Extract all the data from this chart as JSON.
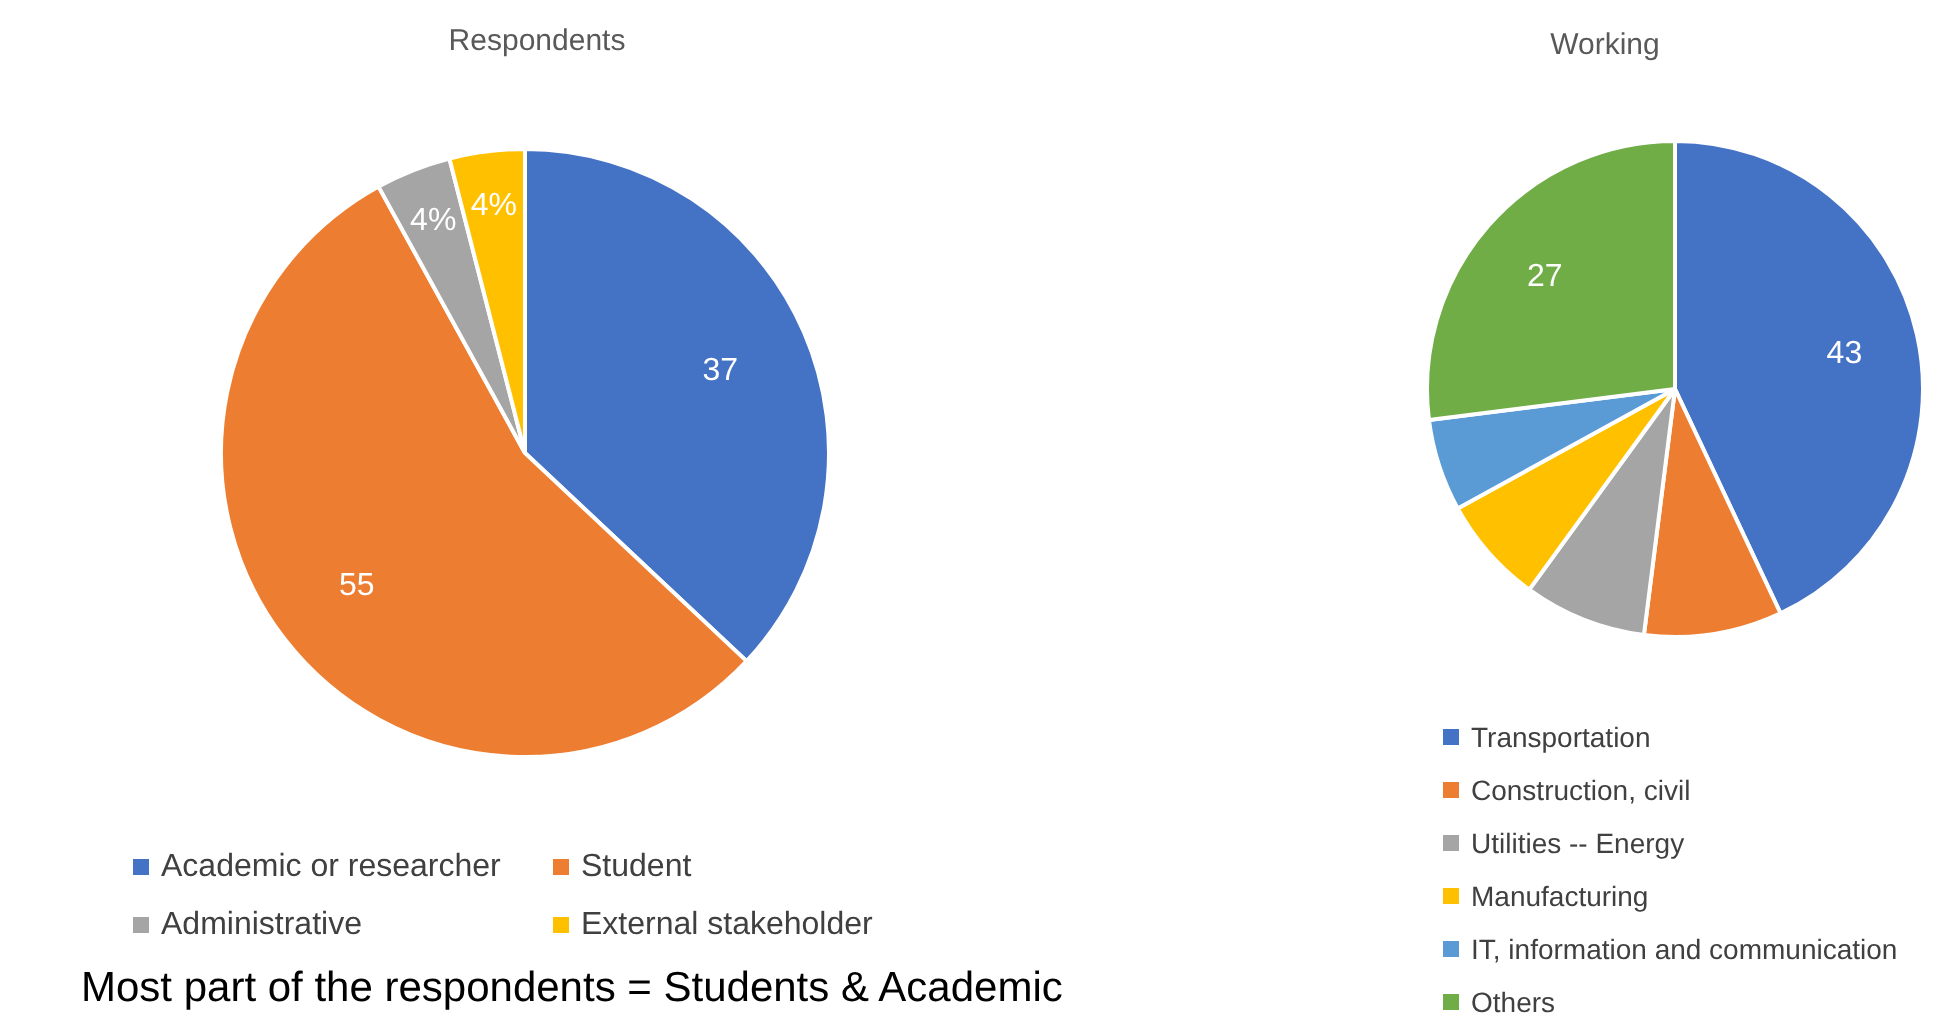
{
  "chart_data": [
    {
      "type": "pie",
      "title": "Respondents",
      "categories": [
        "Academic or researcher",
        "Student",
        "Administrative",
        "External stakeholder"
      ],
      "values": [
        37,
        55,
        4,
        4
      ],
      "colors": [
        "#4472c4",
        "#ed7d31",
        "#a5a5a5",
        "#ffc000"
      ],
      "value_labels": [
        "37",
        "55",
        "4%",
        "4%"
      ],
      "legend": "bottom",
      "annotations": [
        "Most part of the respondents = Students & Academic"
      ]
    },
    {
      "type": "pie",
      "title": "Working",
      "categories": [
        "Transportation",
        "Construction, civil",
        "Utilities -- Energy",
        "Manufacturing",
        "IT, information and communication",
        "Others"
      ],
      "values": [
        43,
        9,
        8,
        7,
        6,
        27
      ],
      "colors": [
        "#4472c4",
        "#ed7d31",
        "#a5a5a5",
        "#ffc000",
        "#5b9bd5",
        "#70ad47"
      ],
      "value_labels": [
        "43",
        null,
        null,
        null,
        null,
        "27"
      ],
      "legend": "bottom"
    }
  ]
}
